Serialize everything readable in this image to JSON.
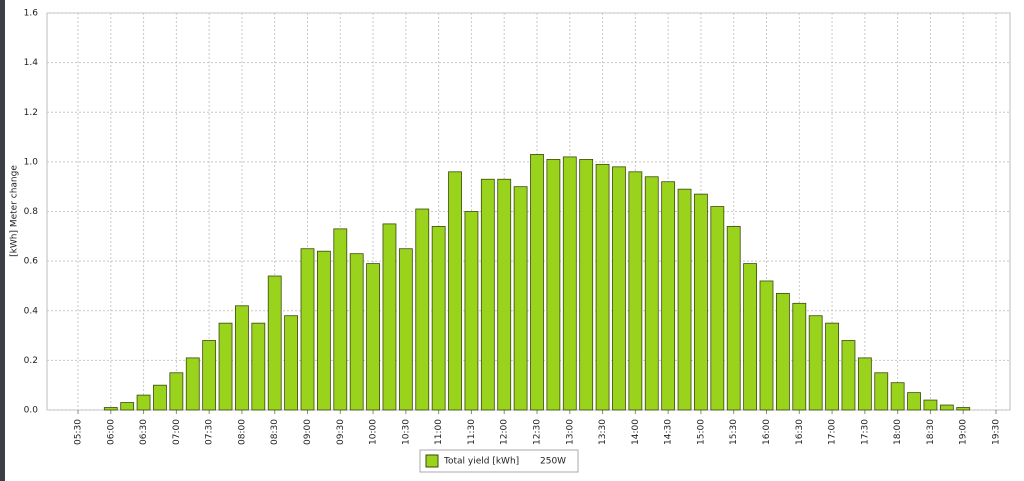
{
  "chart_data": {
    "type": "bar",
    "y_label": "[kWh] Meter change",
    "categories": [
      "05:30",
      null,
      "06:00",
      null,
      "06:30",
      null,
      "07:00",
      null,
      "07:30",
      null,
      "08:00",
      null,
      "08:30",
      null,
      "09:00",
      null,
      "09:30",
      null,
      "10:00",
      null,
      "10:30",
      null,
      "11:00",
      null,
      "11:30",
      null,
      "12:00",
      null,
      "12:30",
      null,
      "13:00",
      null,
      "13:30",
      null,
      "14:00",
      null,
      "14:30",
      null,
      "15:00",
      null,
      "15:30",
      null,
      "16:00",
      null,
      "16:30",
      null,
      "17:00",
      null,
      "17:30",
      null,
      "18:00",
      null,
      "18:30",
      null,
      "19:00",
      null,
      "19:30"
    ],
    "series": [
      {
        "name": "Total yield [kWh]",
        "color": "#9ad31c",
        "values": [
          0,
          0,
          0.01,
          0.03,
          0.06,
          0.1,
          0.15,
          0.21,
          0.28,
          0.35,
          0.42,
          0.35,
          0.54,
          0.38,
          0.65,
          0.64,
          0.73,
          0.63,
          0.59,
          0.75,
          0.65,
          0.81,
          0.74,
          0.96,
          0.8,
          0.93,
          0.93,
          0.9,
          1.03,
          1.01,
          1.02,
          1.01,
          0.99,
          0.98,
          0.96,
          0.94,
          0.92,
          0.89,
          0.87,
          0.82,
          0.74,
          0.59,
          0.52,
          0.47,
          0.43,
          0.38,
          0.35,
          0.28,
          0.21,
          0.15,
          0.11,
          0.07,
          0.04,
          0.02,
          0.01,
          0,
          0
        ]
      }
    ],
    "legend_note": "250W",
    "ylim": [
      0,
      1.6
    ],
    "yticks": [
      {
        "value": 0,
        "label": "0.0"
      },
      0.2,
      0.4,
      0.6,
      0.8,
      {
        "value": 1,
        "label": "1.0"
      },
      1.2,
      1.4,
      1.6
    ],
    "grid": true
  }
}
